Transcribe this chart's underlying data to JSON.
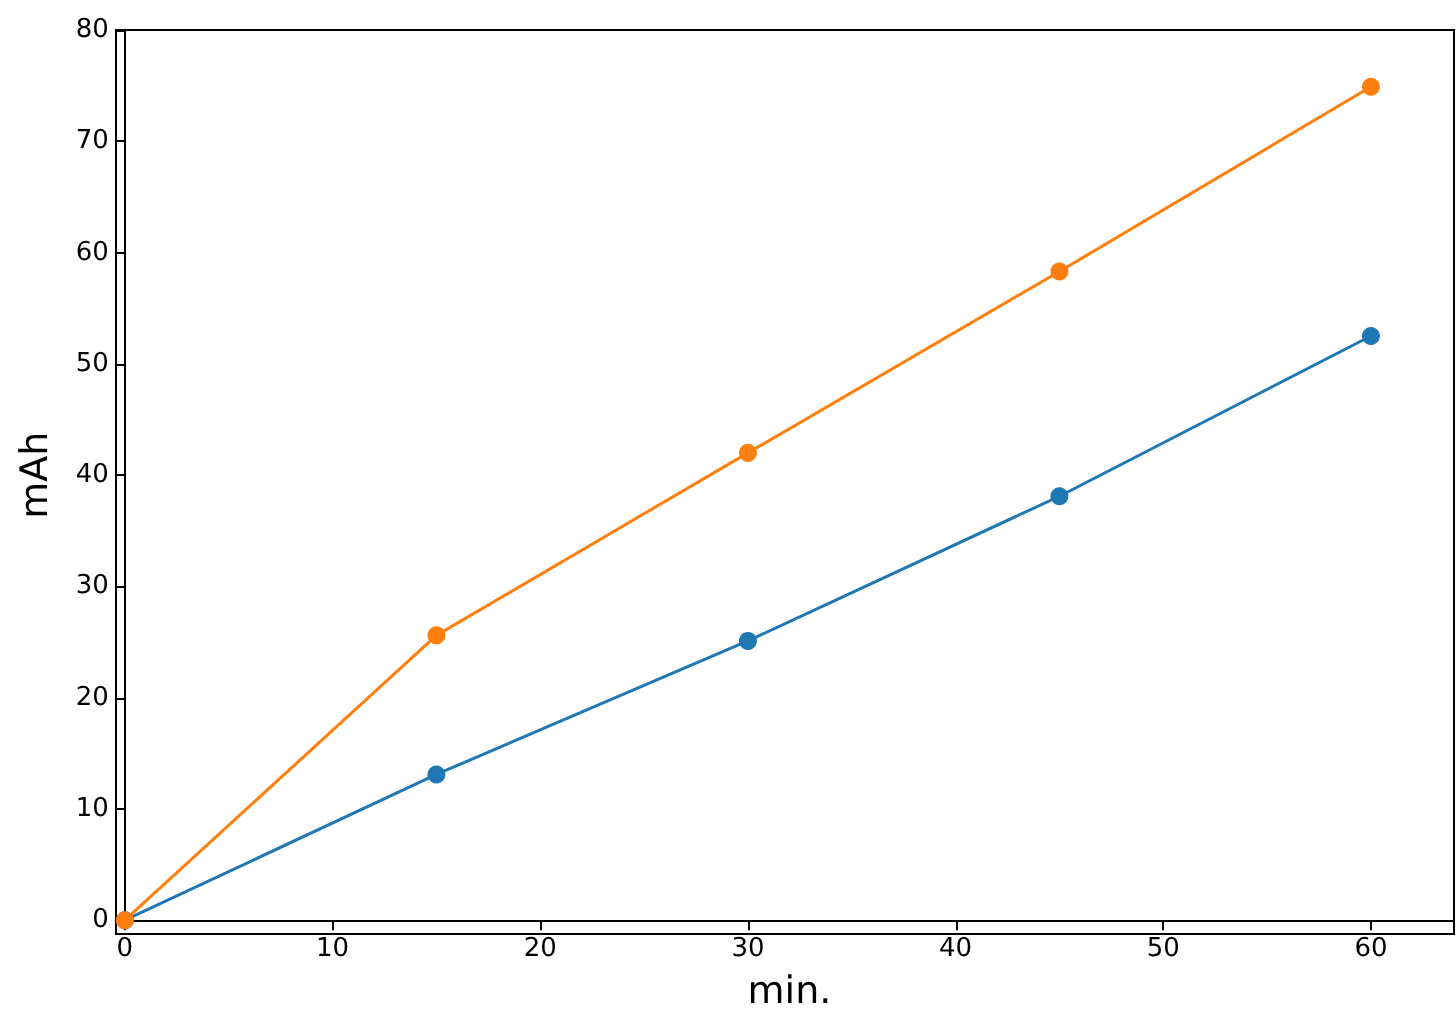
{
  "chart_data": {
    "type": "line",
    "xlabel": "min.",
    "ylabel": "mAh",
    "x": [
      0,
      15,
      30,
      45,
      60
    ],
    "series": [
      {
        "color": "#1f77b4",
        "values": [
          0,
          13.1,
          25.1,
          38.1,
          52.5
        ]
      },
      {
        "color": "#ff7f0e",
        "values": [
          0,
          25.6,
          42,
          58.3,
          74.9
        ]
      }
    ],
    "xlim": [
      0,
      64
    ],
    "xticks": [
      0,
      10,
      20,
      30,
      40,
      50,
      60
    ],
    "ylim": [
      0,
      80
    ],
    "yticks": [
      0,
      10,
      20,
      30,
      40,
      50,
      60,
      70,
      80
    ],
    "grid": false,
    "marker": "circle",
    "line_style": "solid"
  }
}
